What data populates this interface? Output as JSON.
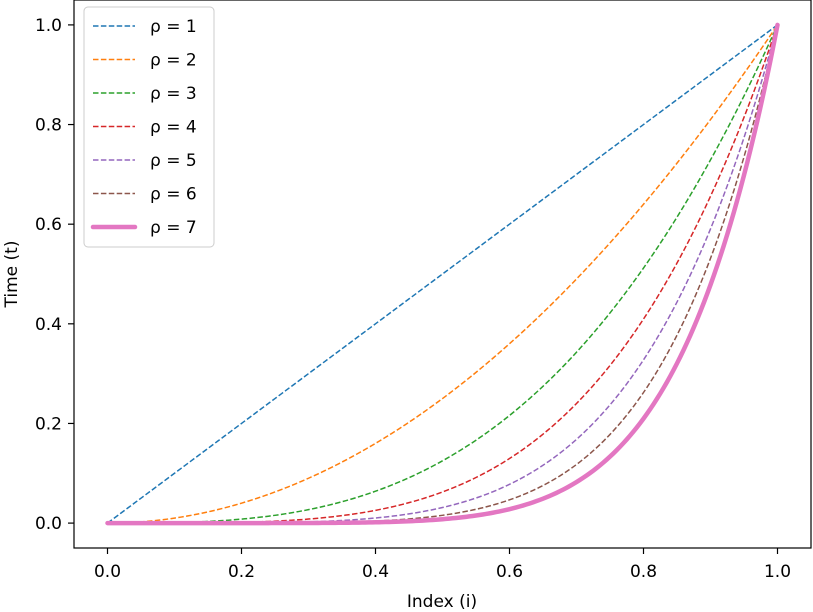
{
  "chart_data": {
    "type": "line",
    "title": "",
    "xlabel": "Index (i)",
    "ylabel": "Time (t)",
    "xlim": [
      -0.05,
      1.05
    ],
    "ylim": [
      -0.05,
      1.05
    ],
    "xticks": [
      "0.0",
      "0.2",
      "0.4",
      "0.6",
      "0.8",
      "1.0"
    ],
    "yticks": [
      "0.0",
      "0.2",
      "0.4",
      "0.6",
      "0.8",
      "1.0"
    ],
    "x": [
      0.0,
      0.05,
      0.1,
      0.15,
      0.2,
      0.25,
      0.3,
      0.35,
      0.4,
      0.45,
      0.5,
      0.55,
      0.6,
      0.65,
      0.7,
      0.75,
      0.8,
      0.85,
      0.9,
      0.95,
      1.0
    ],
    "grid": false,
    "legend_position": "upper-left",
    "series": [
      {
        "name": "ρ = 1",
        "exponent": 1,
        "color": "#1f77b4",
        "style": "dashed",
        "values": [
          0.0,
          0.05,
          0.1,
          0.15,
          0.2,
          0.25,
          0.3,
          0.35,
          0.4,
          0.45,
          0.5,
          0.55,
          0.6,
          0.65,
          0.7,
          0.75,
          0.8,
          0.85,
          0.9,
          0.95,
          1.0
        ]
      },
      {
        "name": "ρ = 2",
        "exponent": 2,
        "color": "#ff7f0e",
        "style": "dashed",
        "values": [
          0.0,
          0.0025,
          0.01,
          0.0225,
          0.04,
          0.0625,
          0.09,
          0.1225,
          0.16,
          0.2025,
          0.25,
          0.3025,
          0.36,
          0.4225,
          0.49,
          0.5625,
          0.64,
          0.7225,
          0.81,
          0.9025,
          1.0
        ]
      },
      {
        "name": "ρ = 3",
        "exponent": 3,
        "color": "#2ca02c",
        "style": "dashed",
        "values": [
          0.0,
          0.0001,
          0.001,
          0.0034,
          0.008,
          0.0156,
          0.027,
          0.0429,
          0.064,
          0.0911,
          0.125,
          0.1664,
          0.216,
          0.2746,
          0.343,
          0.4219,
          0.512,
          0.6141,
          0.729,
          0.8574,
          1.0
        ]
      },
      {
        "name": "ρ = 4",
        "exponent": 4,
        "color": "#d62728",
        "style": "dashed",
        "values": [
          0.0,
          0.0,
          0.0001,
          0.0005,
          0.0016,
          0.0039,
          0.0081,
          0.015,
          0.0256,
          0.041,
          0.0625,
          0.0915,
          0.1296,
          0.1785,
          0.2401,
          0.3164,
          0.4096,
          0.522,
          0.6561,
          0.8145,
          1.0
        ]
      },
      {
        "name": "ρ = 5",
        "exponent": 5,
        "color": "#9467bd",
        "style": "dashed",
        "values": [
          0.0,
          0.0,
          0.0,
          0.0001,
          0.0003,
          0.001,
          0.0024,
          0.0053,
          0.0102,
          0.0185,
          0.0313,
          0.0503,
          0.0778,
          0.116,
          0.1681,
          0.2373,
          0.3277,
          0.4437,
          0.5905,
          0.7738,
          1.0
        ]
      },
      {
        "name": "ρ = 6",
        "exponent": 6,
        "color": "#8c564b",
        "style": "dashed",
        "values": [
          0.0,
          0.0,
          0.0,
          0.0,
          0.0001,
          0.0002,
          0.0007,
          0.0018,
          0.0041,
          0.0083,
          0.0156,
          0.0277,
          0.0467,
          0.0754,
          0.1176,
          0.178,
          0.2621,
          0.3771,
          0.5314,
          0.7351,
          1.0
        ]
      },
      {
        "name": "ρ = 7",
        "exponent": 7,
        "color": "#e377c2",
        "style": "solid",
        "values": [
          0.0,
          0.0,
          0.0,
          0.0,
          0.0,
          0.0001,
          0.0002,
          0.0006,
          0.0016,
          0.0037,
          0.0078,
          0.0152,
          0.028,
          0.049,
          0.0824,
          0.1335,
          0.2097,
          0.3206,
          0.4783,
          0.6983,
          1.0
        ]
      }
    ]
  }
}
